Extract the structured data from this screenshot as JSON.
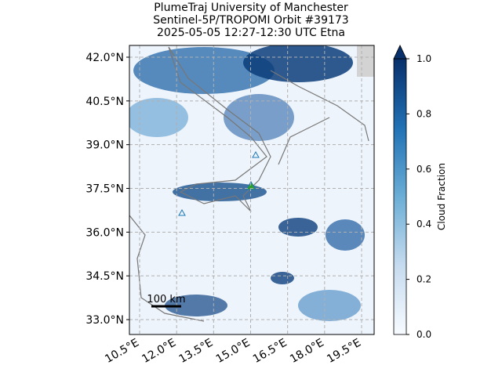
{
  "map": {
    "title_lines": [
      "PlumeTraj    University of Manchester",
      "Sentinel-5P/TROPOMI Orbit #39173",
      "2025-05-05    12:27-12:30 UTC    Etna"
    ],
    "lat_ticks": [
      {
        "value": 42.0,
        "label": "42.0°N"
      },
      {
        "value": 40.5,
        "label": "40.5°N"
      },
      {
        "value": 39.0,
        "label": "39.0°N"
      },
      {
        "value": 37.5,
        "label": "37.5°N"
      },
      {
        "value": 36.0,
        "label": "36.0°N"
      },
      {
        "value": 34.5,
        "label": "34.5°N"
      },
      {
        "value": 33.0,
        "label": "33.0°N"
      }
    ],
    "lon_ticks": [
      {
        "value": 10.5,
        "label": "10.5°E"
      },
      {
        "value": 12.0,
        "label": "12.0°E"
      },
      {
        "value": 13.5,
        "label": "13.5°E"
      },
      {
        "value": 15.0,
        "label": "15.0°E"
      },
      {
        "value": 16.5,
        "label": "16.5°E"
      },
      {
        "value": 18.0,
        "label": "18.0°E"
      },
      {
        "value": 19.5,
        "label": "19.5°E"
      }
    ],
    "scale_bar": "100 km",
    "colorbar": {
      "label": "Cloud Fraction",
      "lim": [
        0,
        1
      ],
      "ticks": [
        {
          "value": 0,
          "label": "0.0"
        },
        {
          "value": 0.2,
          "label": "0.2"
        },
        {
          "value": 0.4,
          "label": "0.4"
        },
        {
          "value": 0.6,
          "label": "0.6"
        },
        {
          "value": 0.8,
          "label": "0.8"
        },
        {
          "value": 1,
          "label": "1.0"
        }
      ]
    }
  }
}
